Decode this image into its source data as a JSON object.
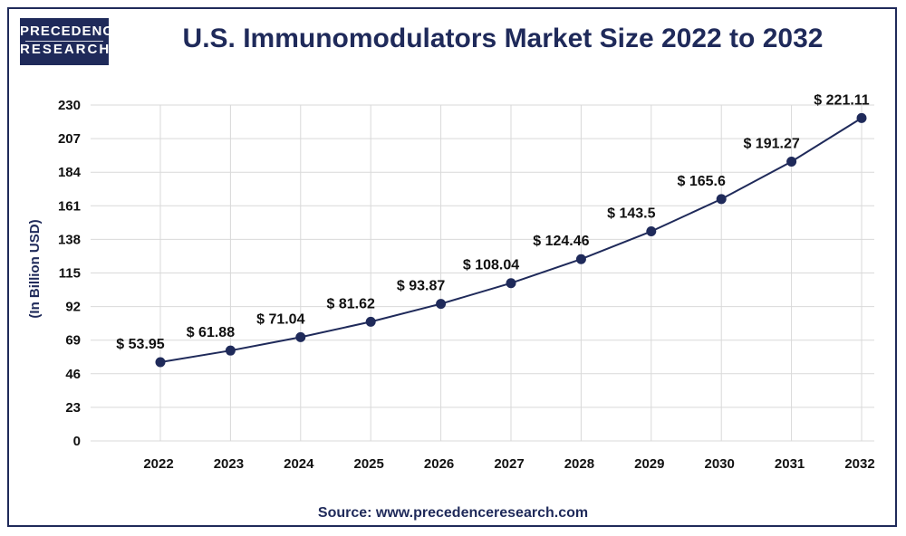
{
  "logo": {
    "line1": "PRECEDENCE",
    "line2": "RESEARCH"
  },
  "title": "U.S. Immunomodulators Market Size 2022 to 2032",
  "source": "Source: www.precedenceresearch.com",
  "colors": {
    "accent": "#1f2a5a",
    "grid": "#d9d9d9"
  },
  "chart_data": {
    "type": "line",
    "title": "U.S. Immunomodulators Market Size 2022 to 2032",
    "xlabel": "",
    "ylabel": "(In Billion USD)",
    "ylim": [
      0,
      230
    ],
    "yticks": [
      0,
      23,
      46,
      69,
      92,
      115,
      138,
      161,
      184,
      207,
      230
    ],
    "grid": true,
    "categories": [
      "2022",
      "2023",
      "2024",
      "2025",
      "2026",
      "2027",
      "2028",
      "2029",
      "2030",
      "2031",
      "2032"
    ],
    "values": [
      53.95,
      61.88,
      71.04,
      81.62,
      93.87,
      108.04,
      124.46,
      143.5,
      165.6,
      191.27,
      221.11
    ],
    "labels": [
      "$ 53.95",
      "$ 61.88",
      "$ 71.04",
      "$ 81.62",
      "$ 93.87",
      "$ 108.04",
      "$ 124.46",
      "$ 143.5",
      "$ 165.6",
      "$ 191.27",
      "$ 221.11"
    ]
  }
}
